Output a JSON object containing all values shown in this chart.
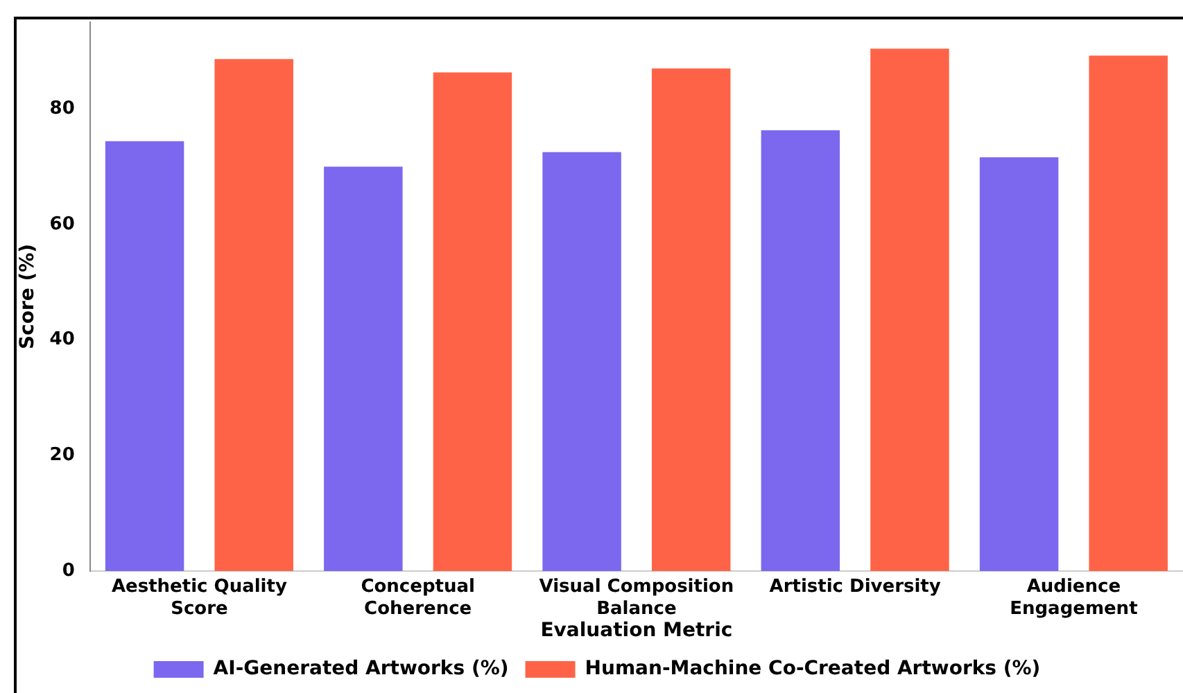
{
  "chart_data": {
    "type": "bar",
    "xlabel": "Evaluation Metric",
    "ylabel": "Score (%)",
    "categories": [
      "Aesthetic Quality Score",
      "Conceptual Coherence",
      "Visual Composition Balance",
      "Artistic Diversity",
      "Audience Engagement"
    ],
    "series": [
      {
        "name": "AI-Generated Artworks (%)",
        "color": "#7b68ee",
        "values": [
          74.4,
          70.0,
          72.5,
          76.3,
          71.6
        ]
      },
      {
        "name": "Human-Machine Co-Created Artworks (%)",
        "color": "#ff6347",
        "values": [
          88.6,
          86.3,
          87.0,
          90.4,
          89.2
        ]
      }
    ],
    "ylim": [
      0,
      95
    ],
    "yticks": [
      0,
      20,
      40,
      60,
      80
    ],
    "grid": false,
    "legend": "bottom"
  }
}
